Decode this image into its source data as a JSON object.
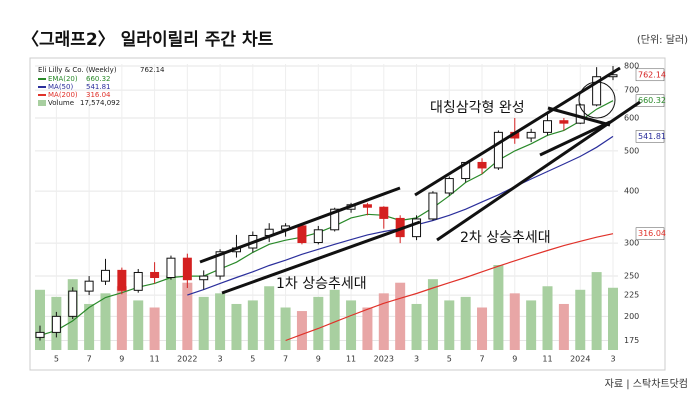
{
  "chart_data": {
    "type": "candlestick",
    "title": "〈그래프2〉 일라이릴리 주간 차트",
    "unit": "(단위: 달러)",
    "source": "자료 | 스탁차트닷컴",
    "name": "Eli Lilly & Co. (Weekly)",
    "last": 762.14,
    "volume_name": "Volume",
    "volume_last": {
      "value": 17574092,
      "label": "17,574,092"
    },
    "categories": [
      null,
      "5",
      null,
      "7",
      null,
      "9",
      null,
      "11",
      null,
      "2022",
      null,
      "3",
      null,
      "5",
      null,
      "7",
      null,
      "9",
      null,
      "11",
      null,
      "2023",
      null,
      "3",
      null,
      "5",
      null,
      "7",
      null,
      "9",
      null,
      "11",
      null,
      "2024",
      null,
      "3"
    ],
    "open": [
      178,
      183,
      200,
      230,
      243,
      258,
      231,
      255,
      248,
      276,
      245,
      250,
      286,
      292,
      313,
      324,
      330,
      301,
      323,
      362,
      371,
      366,
      344,
      311,
      343,
      396,
      429,
      469,
      455,
      554,
      537,
      554,
      591,
      583,
      645,
      754
    ],
    "high": [
      190,
      205,
      235,
      250,
      275,
      262,
      260,
      270,
      280,
      283,
      258,
      290,
      314,
      320,
      335,
      335,
      335,
      330,
      365,
      375,
      375,
      368,
      350,
      350,
      400,
      434,
      470,
      480,
      560,
      600,
      565,
      620,
      600,
      650,
      795,
      800
    ],
    "low": [
      175,
      178,
      197,
      225,
      238,
      226,
      228,
      240,
      245,
      234,
      232,
      245,
      277,
      285,
      302,
      311,
      298,
      298,
      320,
      355,
      350,
      325,
      300,
      305,
      340,
      390,
      420,
      440,
      450,
      520,
      525,
      545,
      560,
      580,
      640,
      740
    ],
    "close": [
      183,
      200,
      230,
      243,
      258,
      231,
      255,
      248,
      276,
      245,
      250,
      286,
      292,
      313,
      324,
      330,
      301,
      323,
      362,
      371,
      366,
      344,
      311,
      343,
      396,
      429,
      469,
      455,
      554,
      537,
      554,
      591,
      583,
      645,
      754,
      762.14
    ],
    "volume": [
      17000000,
      15000000,
      20000000,
      13000000,
      16000000,
      18000000,
      14000000,
      12000000,
      21000000,
      19000000,
      15000000,
      16000000,
      13000000,
      14000000,
      18000000,
      12000000,
      11000000,
      15000000,
      17000000,
      14000000,
      12000000,
      16000000,
      19000000,
      13000000,
      20000000,
      14000000,
      15000000,
      12000000,
      24000000,
      16000000,
      14000000,
      18000000,
      13000000,
      17000000,
      22000000,
      17574092
    ],
    "series": [
      {
        "name": "EMA(20)",
        "color": "#2a8a2a",
        "last": 660.32,
        "values": [
          180,
          185,
          195,
          210,
          222,
          228,
          235,
          240,
          248,
          250,
          250,
          260,
          270,
          285,
          298,
          305,
          310,
          318,
          330,
          345,
          352,
          350,
          340,
          345,
          365,
          390,
          420,
          440,
          475,
          500,
          520,
          545,
          560,
          590,
          630,
          660.32
        ]
      },
      {
        "name": "MA(50)",
        "color": "#2b2f9c",
        "last": 541.81,
        "values": [
          null,
          null,
          null,
          null,
          null,
          null,
          null,
          null,
          null,
          225,
          232,
          240,
          248,
          256,
          265,
          273,
          282,
          290,
          298,
          306,
          314,
          320,
          325,
          332,
          340,
          350,
          362,
          377,
          392,
          410,
          428,
          446,
          465,
          485,
          510,
          541.81
        ]
      },
      {
        "name": "MA(200)",
        "color": "#e0322a",
        "last": 316.04,
        "values": [
          null,
          null,
          null,
          null,
          null,
          null,
          null,
          null,
          null,
          null,
          null,
          null,
          null,
          null,
          null,
          175,
          181,
          187,
          194,
          201,
          208,
          215,
          221,
          227,
          234,
          241,
          248,
          256,
          264,
          272,
          280,
          288,
          296,
          303,
          310,
          316.04
        ]
      }
    ],
    "ylim": [
      166,
      809
    ],
    "yticks": [
      800,
      700,
      600,
      500,
      400,
      300,
      250,
      225,
      200,
      175
    ],
    "log_scale": true,
    "grid": true,
    "annotations": [
      "대칭삼각형 완성",
      "1차 상승추세대",
      "2차 상승추세대"
    ]
  }
}
